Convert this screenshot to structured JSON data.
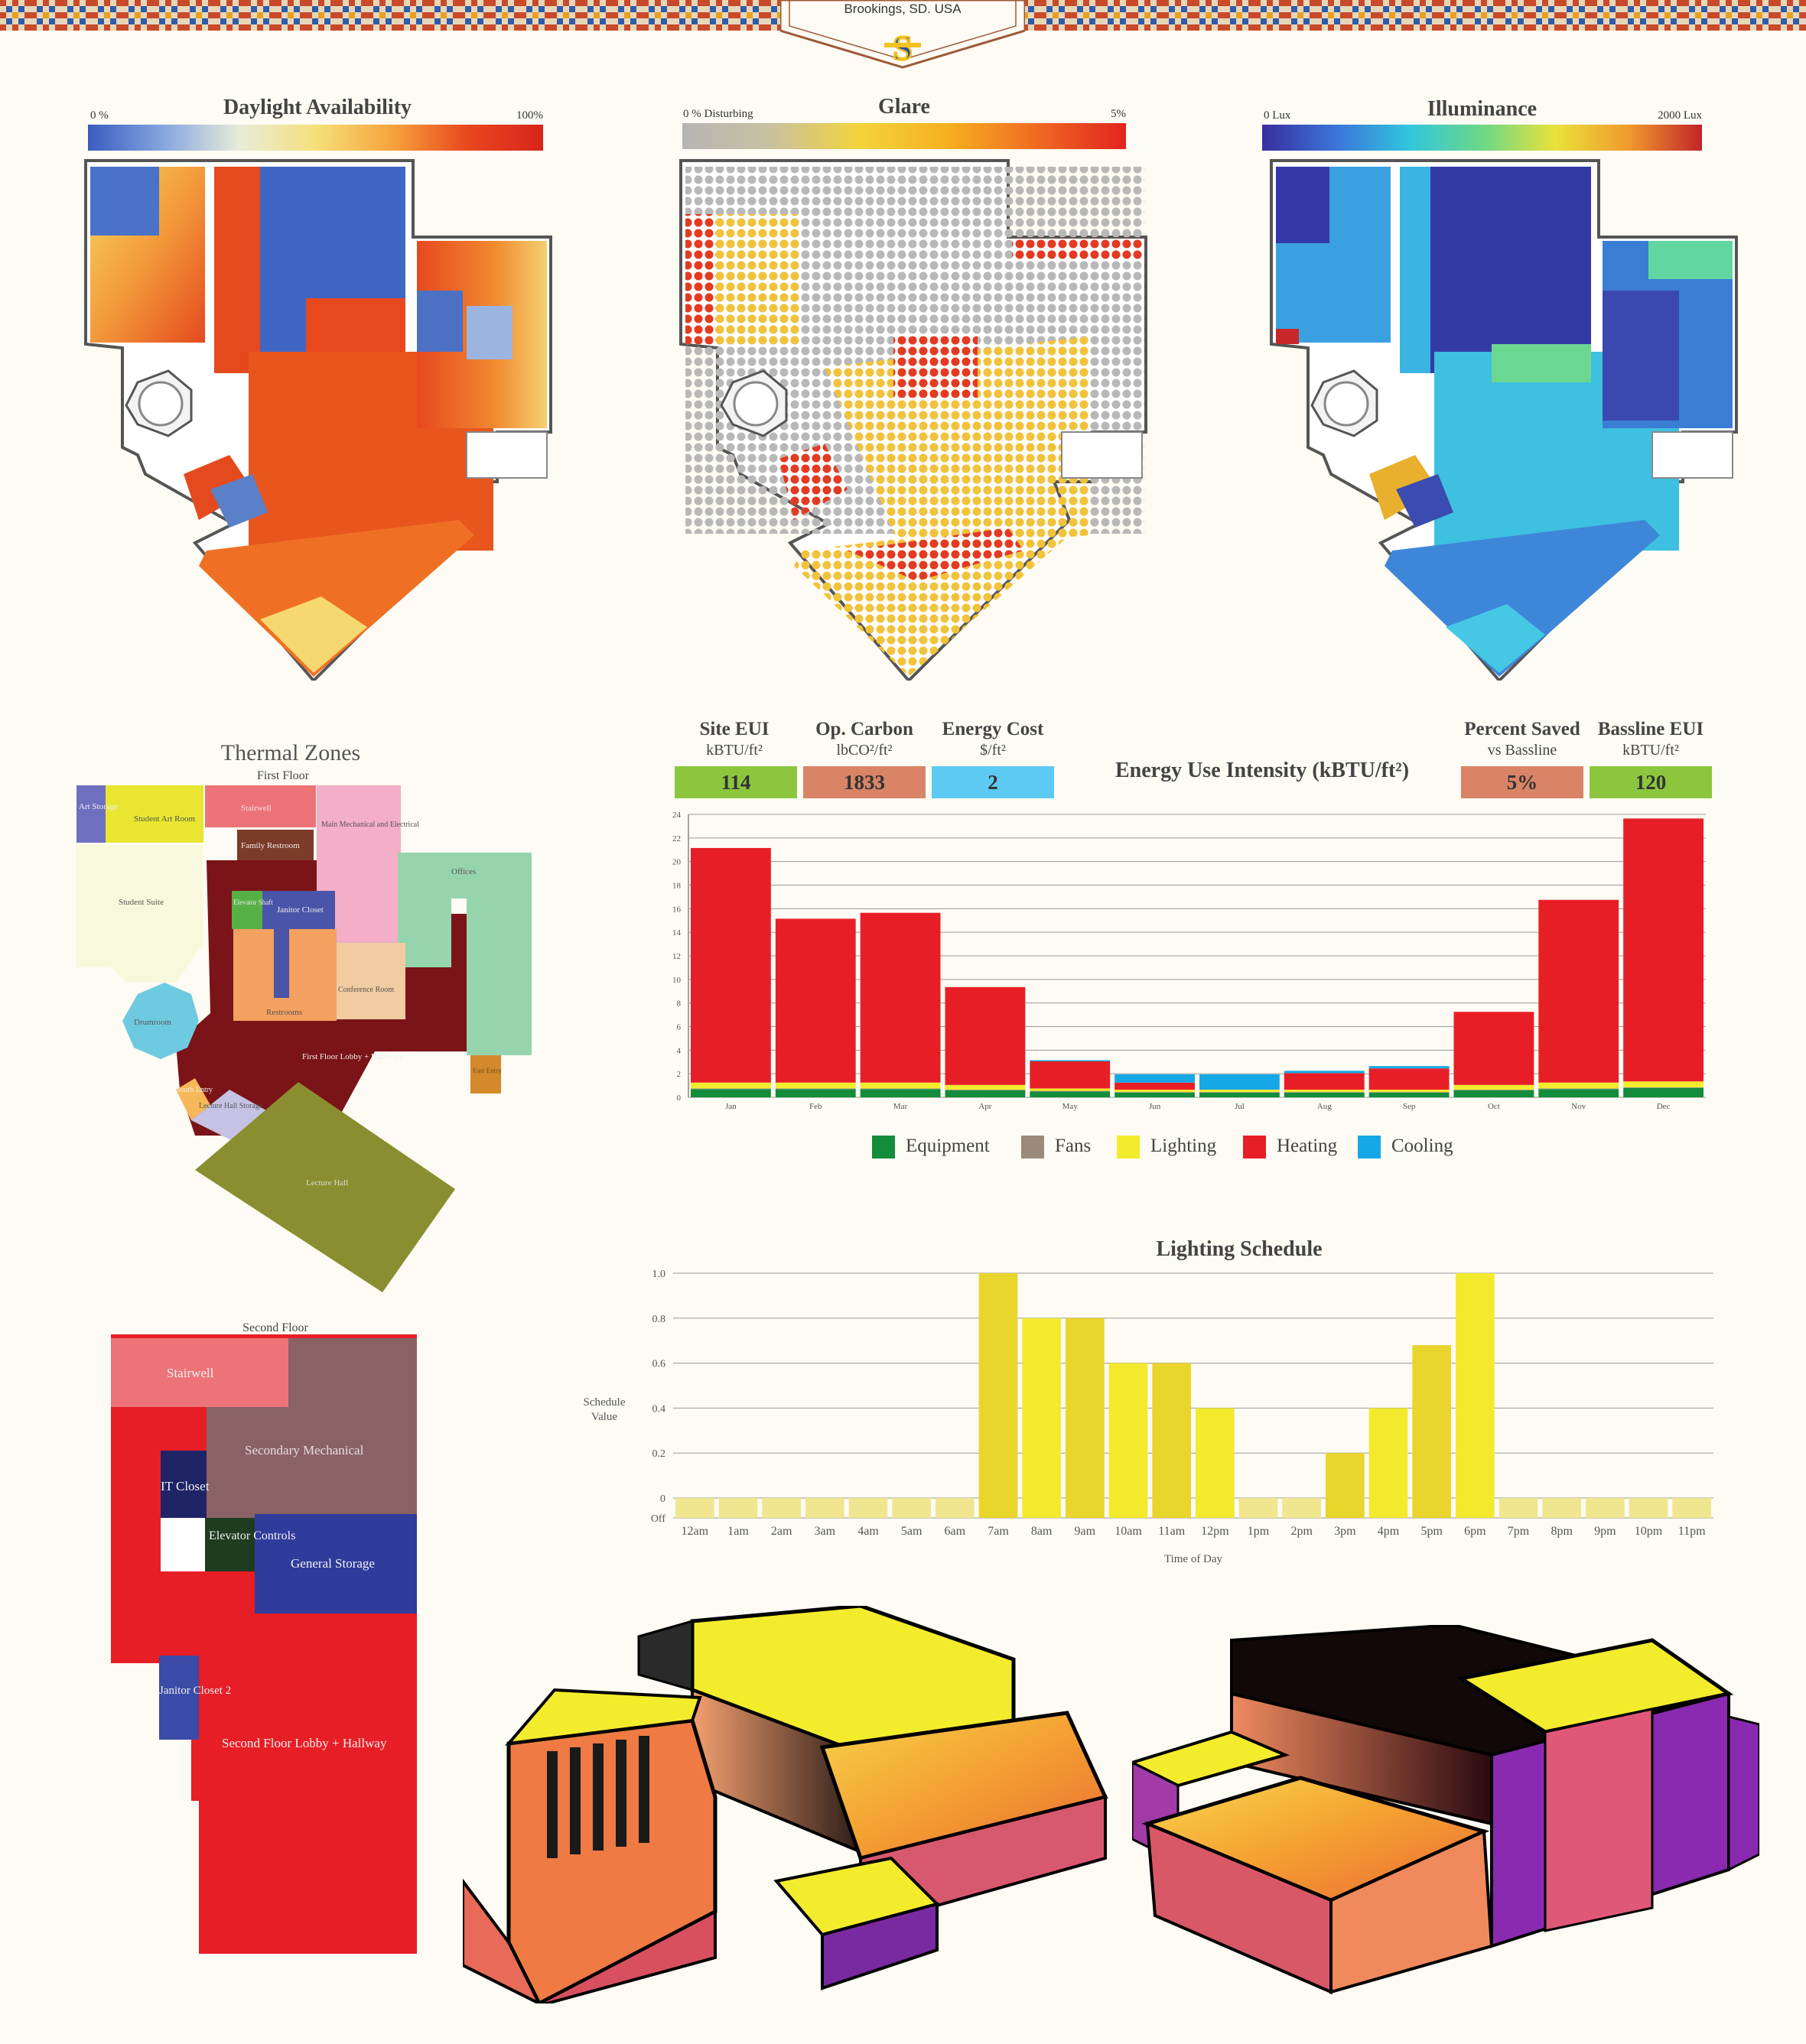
{
  "header": {
    "location": "Brookings, SD. USA",
    "logo_icon": "sdsu-monogram-icon"
  },
  "ramps": [
    {
      "title": "Daylight Availability",
      "min_label": "0 %",
      "max_label": "100%",
      "colors": [
        "#3a5cc0",
        "#86a6e0",
        "#e8ecd8",
        "#f5e07a",
        "#f7a43c",
        "#e8481e",
        "#d8241c"
      ]
    },
    {
      "title": "Glare",
      "min_label": "0 % Disturbing",
      "max_label": "5%",
      "colors": [
        "#b5b5b5",
        "#c9c1a0",
        "#f3d33a",
        "#f6b020",
        "#ef6a22",
        "#e22420"
      ]
    },
    {
      "title": "Illuminance",
      "min_label": "0 Lux",
      "max_label": "2000 Lux",
      "colors": [
        "#3a2e9e",
        "#3b74d8",
        "#31c6de",
        "#6cd886",
        "#e9e23a",
        "#f09a2c",
        "#c2242a"
      ]
    }
  ],
  "thermal_zones": {
    "title": "Thermal Zones",
    "first_floor": {
      "subtitle": "First Floor",
      "zones": [
        {
          "label": "Art Storage",
          "color": "#6f6fc0"
        },
        {
          "label": "Student Art Room",
          "color": "#e8e630"
        },
        {
          "label": "Stairwell",
          "color": "#ec7478"
        },
        {
          "label": "Main Mechanical and Electrical",
          "color": "#f4aec8"
        },
        {
          "label": "Family Restroom",
          "color": "#7c3a28"
        },
        {
          "label": "Offices",
          "color": "#96d4ae"
        },
        {
          "label": "Student Suite",
          "color": "#f8f8dc"
        },
        {
          "label": "Elevator Shaft",
          "color": "#56b046"
        },
        {
          "label": "Janitor Closet",
          "color": "#4a54a8"
        },
        {
          "label": "Conference Room",
          "color": "#f0cca0"
        },
        {
          "label": "Restrooms",
          "color": "#f4a060"
        },
        {
          "label": "Drumroom",
          "color": "#6ecae0"
        },
        {
          "label": "First Floor Lobby + Hallways",
          "color": "#7a1418"
        },
        {
          "label": "East Entry",
          "color": "#d48a2c"
        },
        {
          "label": "South Entry",
          "color": "#f6b858"
        },
        {
          "label": "Lecture Hall Storage",
          "color": "#c6c2e4"
        },
        {
          "label": "Lecture Hall",
          "color": "#8a8e30"
        }
      ]
    },
    "second_floor": {
      "subtitle": "Second Floor",
      "zones": [
        {
          "label": "Stairwell",
          "color": "#ec7478"
        },
        {
          "label": "Secondary Mechanical",
          "color": "#8a6266"
        },
        {
          "label": "IT Closet",
          "color": "#1e2466"
        },
        {
          "label": "Elevator Controls",
          "color": "#1e3c20"
        },
        {
          "label": "General Storage",
          "color": "#2f3c9c"
        },
        {
          "label": "Janitor Closet 2",
          "color": "#3a4ca8"
        },
        {
          "label": "Second Floor Lobby + Hallway",
          "color": "#e81e26"
        }
      ]
    }
  },
  "kpis": [
    {
      "title": "Site EUI",
      "unit": "kBTU/ft²",
      "value": "114",
      "color": "#8cc63e"
    },
    {
      "title": "Op. Carbon",
      "unit": "lbCO²/ft²",
      "value": "1833",
      "color": "#d98466"
    },
    {
      "title": "Energy Cost",
      "unit": "$/ft²",
      "value": "2",
      "color": "#5ccaf2"
    },
    {
      "title": "Percent Saved",
      "unit": "vs Bassline",
      "value": "5%",
      "color": "#d98466"
    },
    {
      "title": "Bassline EUI",
      "unit": "kBTU/ft²",
      "value": "120",
      "color": "#8cc63e"
    }
  ],
  "chart_data": [
    {
      "type": "bar",
      "stacked": true,
      "title": "Energy Use Intensity (kBTU/ft²)",
      "categories": [
        "Jan",
        "Feb",
        "Mar",
        "Apr",
        "May",
        "Jun",
        "Jul",
        "Aug",
        "Sep",
        "Oct",
        "Nov",
        "Dec"
      ],
      "ylim": [
        0,
        24
      ],
      "yticks": [
        0,
        2,
        4,
        6,
        8,
        10,
        12,
        14,
        16,
        18,
        20,
        22,
        24
      ],
      "grid": true,
      "legend_position": "bottom",
      "series": [
        {
          "name": "Equipment",
          "color": "#138c3c",
          "values": [
            0.7,
            0.7,
            0.7,
            0.6,
            0.5,
            0.4,
            0.4,
            0.4,
            0.4,
            0.6,
            0.7,
            0.8
          ]
        },
        {
          "name": "Fans",
          "color": "#9a8a7c",
          "values": [
            0.05,
            0.05,
            0.05,
            0.05,
            0.05,
            0.05,
            0.05,
            0.05,
            0.05,
            0.05,
            0.05,
            0.05
          ]
        },
        {
          "name": "Lighting",
          "color": "#f3ec2c",
          "values": [
            0.5,
            0.5,
            0.5,
            0.4,
            0.2,
            0.2,
            0.2,
            0.2,
            0.2,
            0.4,
            0.5,
            0.5
          ]
        },
        {
          "name": "Heating",
          "color": "#e81e26",
          "values": [
            19.9,
            13.9,
            14.4,
            8.3,
            2.3,
            0.6,
            0,
            1.4,
            1.8,
            6.2,
            15.5,
            22.3
          ]
        },
        {
          "name": "Cooling",
          "color": "#16a8e6",
          "values": [
            0,
            0,
            0,
            0,
            0.1,
            0.7,
            1.3,
            0.2,
            0.2,
            0,
            0,
            0
          ]
        }
      ]
    },
    {
      "type": "bar",
      "title": "Lighting Schedule",
      "xlabel": "Time of Day",
      "ylabel": "Schedule Value",
      "categories": [
        "12am",
        "1am",
        "2am",
        "3am",
        "4am",
        "5am",
        "6am",
        "7am",
        "8am",
        "9am",
        "10am",
        "11am",
        "12pm",
        "1pm",
        "2pm",
        "3pm",
        "4pm",
        "5pm",
        "6pm",
        "7pm",
        "8pm",
        "9pm",
        "10pm",
        "11pm"
      ],
      "values": [
        0.08,
        0.08,
        0.08,
        0.08,
        0.08,
        0.08,
        0.08,
        1.0,
        0.8,
        0.8,
        0.6,
        0.6,
        0.4,
        0.08,
        0.08,
        0.2,
        0.4,
        0.68,
        1.0,
        0.08,
        0.08,
        0.08,
        0.08,
        0.08
      ],
      "ylim": [
        0,
        1.0
      ],
      "ytick_labels": [
        "Off",
        "0",
        "0.2",
        "0.4",
        "0.6",
        "0.8",
        "1.0"
      ],
      "grid": true
    }
  ]
}
